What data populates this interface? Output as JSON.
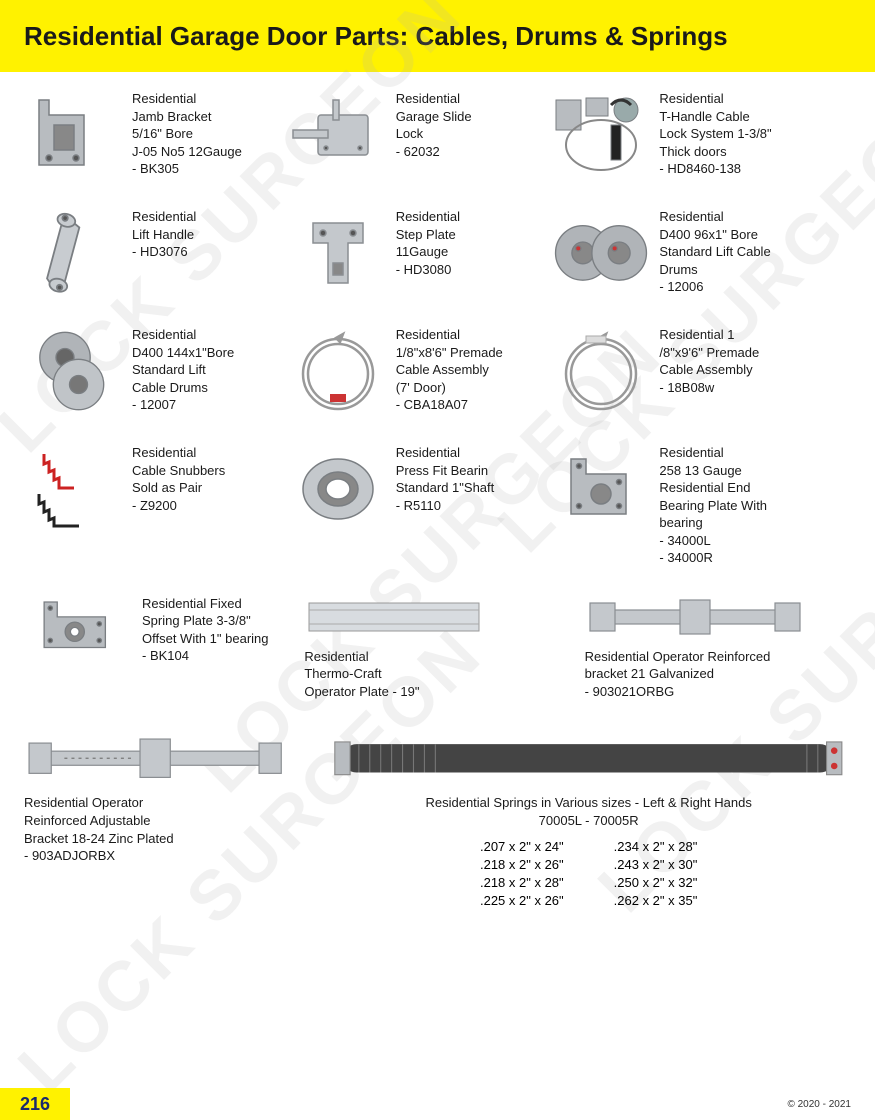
{
  "header": {
    "title": "Residential Garage Door Parts: Cables, Drums & Springs"
  },
  "watermark_text": "LOCK SURGEON",
  "items": {
    "jamb_bracket": "Residential\nJamb Bracket\n5/16\" Bore\nJ-05 No5 12Gauge\n- BK305",
    "slide_lock": "Residential\nGarage Slide\nLock\n- 62032",
    "t_handle": "Residential\nT-Handle Cable\nLock System 1-3/8\"\nThick doors\n- HD8460-138",
    "lift_handle": "Residential\nLift Handle\n- HD3076",
    "step_plate": "Residential\nStep Plate\n11Gauge\n- HD3080",
    "drums_96": "Residential\nD400 96x1\" Bore\nStandard Lift Cable\nDrums\n- 12006",
    "drums_144": "Residential\nD400 144x1\"Bore\nStandard Lift\nCable Drums\n- 12007",
    "cable_7": "Residential\n1/8\"x8'6\" Premade\nCable Assembly\n(7' Door)\n- CBA18A07",
    "cable_9": "Residential 1\n/8\"x9'6\" Premade\nCable Assembly\n- 18B08w",
    "snubbers": "Residential\nCable Snubbers\nSold as Pair\n- Z9200",
    "press_fit": "Residential\nPress Fit Bearin\nStandard 1\"Shaft\n- R5110",
    "end_plate": "Residential\n258 13 Gauge\nResidential End\nBearing Plate With\nbearing\n- 34000L\n- 34000R",
    "spring_plate": "Residential Fixed\nSpring Plate 3-3/8\"\nOffset With 1\" bearing\n- BK104",
    "thermo": "Residential\nThermo-Craft\nOperator Plate - 19\"",
    "reinforced_21": "Residential Operator Reinforced\nbracket 21 Galvanized\n- 903021ORBG",
    "adj_bracket": "Residential Operator\nReinforced Adjustable\nBracket 18-24 Zinc Plated\n- 903ADJORBX",
    "springs_title": "Residential Springs in Various sizes - Left & Right Hands",
    "springs_codes": "70005L  -  70005R",
    "spring_col1": ".207 x 2\" x 24\"\n.218 x 2\" x 26\"\n.218 x 2\" x 28\"\n.225 x 2\" x 26\"",
    "spring_col2": ".234 x 2\" x 28\"\n.243 x 2\" x 30\"\n.250 x 2\" x 32\"\n.262 x 2\" x 35\""
  },
  "footer": {
    "page": "216",
    "copyright": "© 2020 - 2021"
  },
  "colors": {
    "yellow": "#fff200",
    "metal": "#b8bcc0",
    "metal_dark": "#8a8e92",
    "red": "#cc2222"
  }
}
